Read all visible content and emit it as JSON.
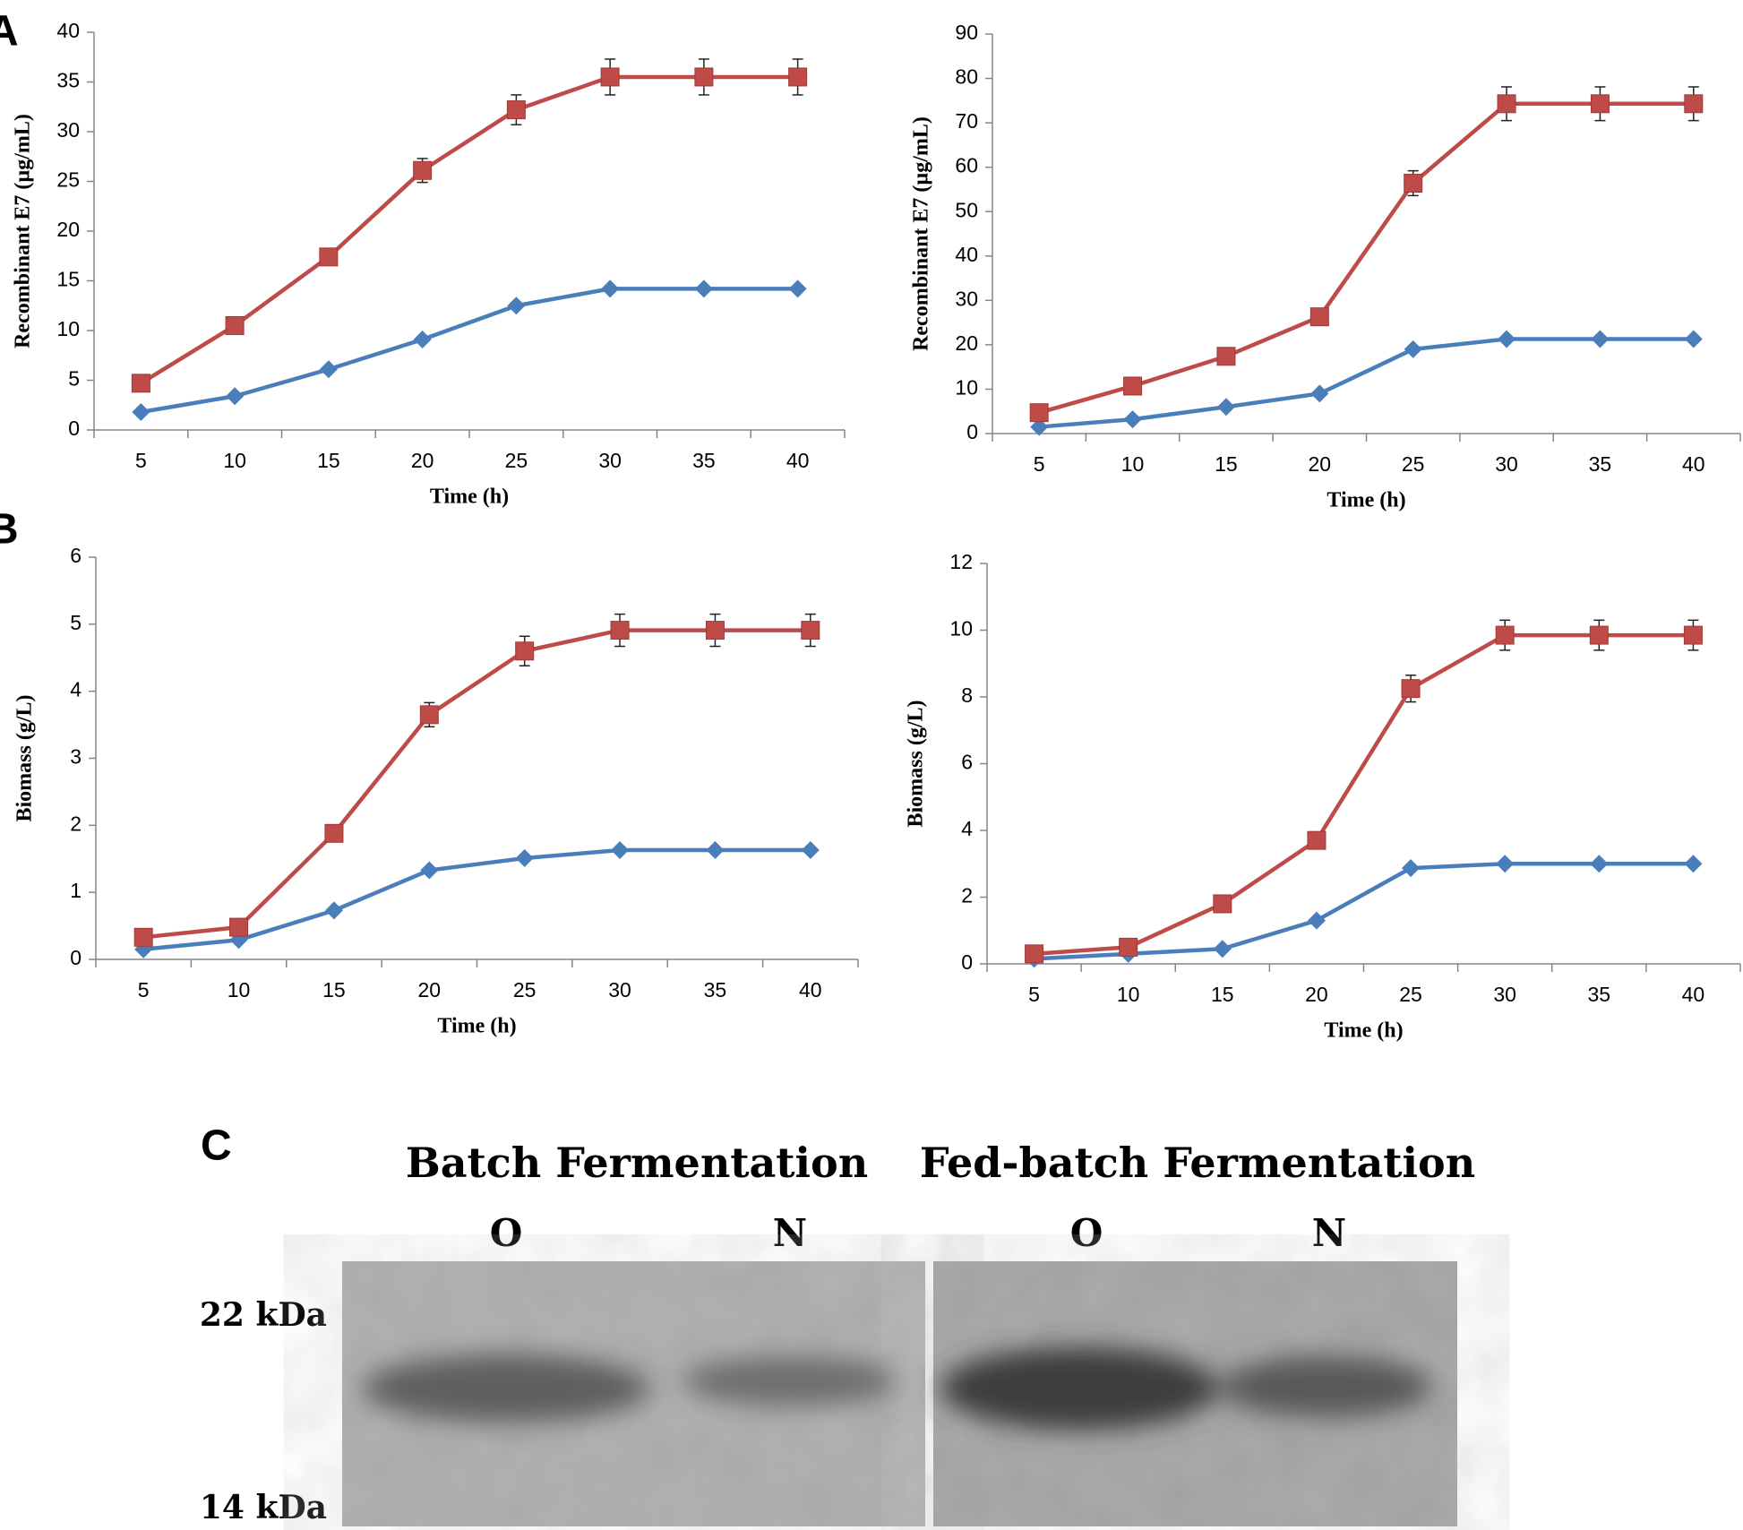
{
  "chart_data": [
    {
      "type": "line",
      "y_label": "Recombinant E7 (µg/mL)",
      "x_label": "Time (h)",
      "categories": [
        "5",
        "10",
        "15",
        "20",
        "25",
        "30",
        "35",
        "40"
      ],
      "ylim": [
        0,
        40
      ],
      "yticks": [
        0,
        5,
        10,
        15,
        20,
        25,
        30,
        35,
        40
      ],
      "series": [
        {
          "color": "#4a7ebb",
          "marker": "diamond",
          "values": [
            1.8,
            3.4,
            6.1,
            9.1,
            12.5,
            14.2,
            14.2,
            14.2
          ]
        },
        {
          "color": "#be4b48",
          "marker": "square",
          "values": [
            4.7,
            10.5,
            17.4,
            26.1,
            32.2,
            35.5,
            35.5,
            35.5
          ],
          "errors": [
            0.3,
            0.4,
            0.5,
            1.2,
            1.5,
            1.8,
            1.8,
            1.8
          ]
        }
      ]
    },
    {
      "type": "line",
      "y_label": "Recombinant E7 (µg/mL)",
      "x_label": "Time (h)",
      "categories": [
        "5",
        "10",
        "15",
        "20",
        "25",
        "30",
        "35",
        "40"
      ],
      "ylim": [
        0,
        90
      ],
      "yticks": [
        0,
        10,
        20,
        30,
        40,
        50,
        60,
        70,
        80,
        90
      ],
      "series": [
        {
          "color": "#4a7ebb",
          "marker": "diamond",
          "values": [
            1.5,
            3.2,
            6.0,
            9.0,
            19.0,
            21.3,
            21.3,
            21.3
          ]
        },
        {
          "color": "#be4b48",
          "marker": "square",
          "values": [
            4.7,
            10.7,
            17.4,
            26.3,
            56.4,
            74.3,
            74.3,
            74.3
          ],
          "errors": [
            0.5,
            0.6,
            0.8,
            1.0,
            2.8,
            3.8,
            3.8,
            3.8
          ]
        }
      ]
    },
    {
      "type": "line",
      "y_label": "Biomass (g/L)",
      "x_label": "Time (h)",
      "categories": [
        "5",
        "10",
        "15",
        "20",
        "25",
        "30",
        "35",
        "40"
      ],
      "ylim": [
        0,
        6
      ],
      "yticks": [
        0,
        1,
        2,
        3,
        4,
        5,
        6
      ],
      "series": [
        {
          "color": "#4a7ebb",
          "marker": "diamond",
          "values": [
            0.15,
            0.29,
            0.73,
            1.33,
            1.51,
            1.63,
            1.63,
            1.63
          ]
        },
        {
          "color": "#be4b48",
          "marker": "square",
          "values": [
            0.33,
            0.48,
            1.88,
            3.65,
            4.6,
            4.91,
            4.91,
            4.91
          ],
          "errors": [
            0.03,
            0.04,
            0.06,
            0.18,
            0.22,
            0.24,
            0.24,
            0.24
          ]
        }
      ]
    },
    {
      "type": "line",
      "y_label": "Biomass (g/L)",
      "x_label": "Time (h)",
      "categories": [
        "5",
        "10",
        "15",
        "20",
        "25",
        "30",
        "35",
        "40"
      ],
      "ylim": [
        0,
        12
      ],
      "yticks": [
        0,
        2,
        4,
        6,
        8,
        10,
        12
      ],
      "series": [
        {
          "color": "#4a7ebb",
          "marker": "diamond",
          "values": [
            0.15,
            0.3,
            0.45,
            1.3,
            2.87,
            3.0,
            3.0,
            3.0
          ]
        },
        {
          "color": "#be4b48",
          "marker": "square",
          "values": [
            0.3,
            0.5,
            1.8,
            3.7,
            8.25,
            9.85,
            9.85,
            9.85
          ],
          "errors": [
            0.05,
            0.06,
            0.08,
            0.1,
            0.4,
            0.45,
            0.45,
            0.45
          ]
        }
      ]
    }
  ],
  "panel_labels": [
    "A",
    "B",
    "C"
  ],
  "gel": {
    "titles": [
      "Batch Fermentation",
      "Fed-batch Fermentation"
    ],
    "lanes": [
      "O",
      "N",
      "O",
      "N"
    ],
    "markers": [
      "22 kDa",
      "14 kDa"
    ]
  }
}
